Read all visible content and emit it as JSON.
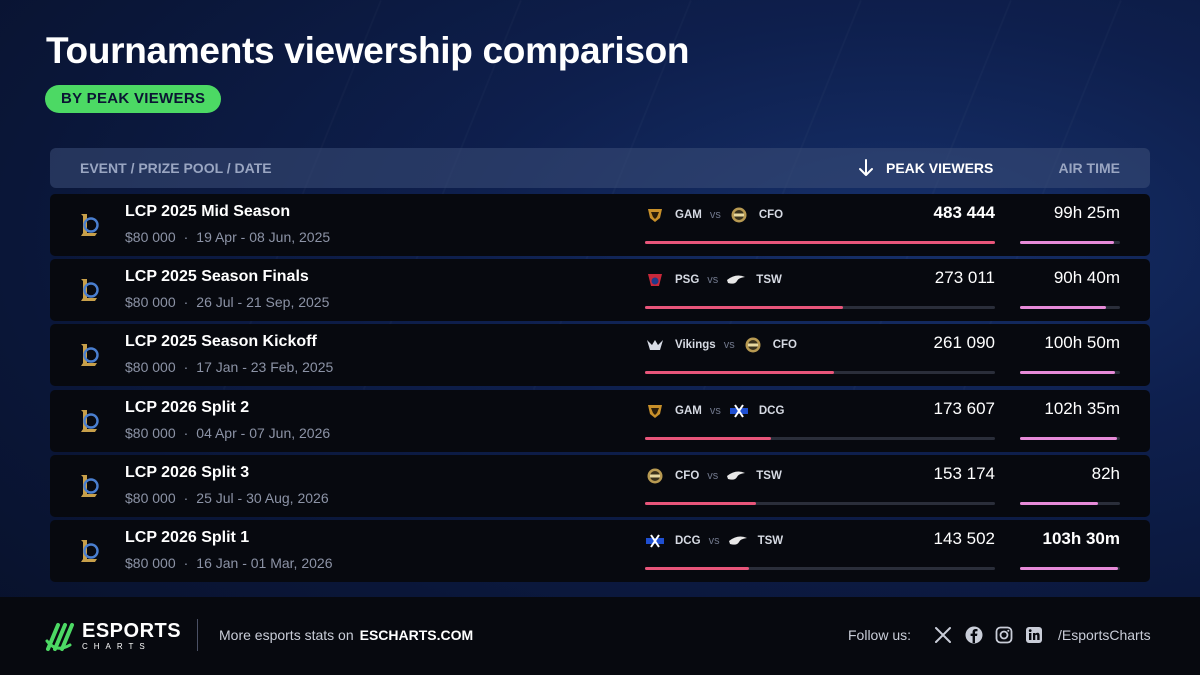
{
  "title": "Tournaments viewership comparison",
  "subtitle": "BY PEAK VIEWERS",
  "headers": {
    "event": "EVENT / PRIZE POOL / DATE",
    "peak": "PEAK VIEWERS",
    "air": "AIR TIME"
  },
  "chart_data": {
    "type": "table",
    "sorted_by": "peak_viewers",
    "sort_order": "descending",
    "columns": [
      "EVENT / PRIZE POOL / DATE",
      "PEAK VIEWERS",
      "AIR TIME"
    ],
    "rows": [
      {
        "event": "LCP 2025 Mid Season",
        "prize": "$80 000",
        "dates": "19 Apr - 08 Jun, 2025",
        "team1": "GAM",
        "team2": "CFO",
        "peak": 483444,
        "peak_label": "483 444",
        "air_hours": 99.42,
        "air_label": "99h 25m"
      },
      {
        "event": "LCP 2025 Season Finals",
        "prize": "$80 000",
        "dates": "26 Jul - 21 Sep, 2025",
        "team1": "PSG",
        "team2": "TSW",
        "peak": 273011,
        "peak_label": "273 011",
        "air_hours": 90.67,
        "air_label": "90h 40m"
      },
      {
        "event": "LCP 2025 Season Kickoff",
        "prize": "$80 000",
        "dates": "17 Jan - 23 Feb, 2025",
        "team1": "Vikings",
        "team2": "CFO",
        "peak": 261090,
        "peak_label": "261 090",
        "air_hours": 100.83,
        "air_label": "100h 50m"
      },
      {
        "event": "LCP 2026 Split 2",
        "prize": "$80 000",
        "dates": "04 Apr - 07 Jun, 2026",
        "team1": "GAM",
        "team2": "DCG",
        "peak": 173607,
        "peak_label": "173 607",
        "air_hours": 102.58,
        "air_label": "102h 35m"
      },
      {
        "event": "LCP 2026 Split 3",
        "prize": "$80 000",
        "dates": "25 Jul - 30 Aug, 2026",
        "team1": "CFO",
        "team2": "TSW",
        "peak": 153174,
        "peak_label": "153 174",
        "air_hours": 82,
        "air_label": "82h"
      },
      {
        "event": "LCP 2026 Split 1",
        "prize": "$80 000",
        "dates": "16 Jan - 01 Mar, 2026",
        "team1": "DCG",
        "team2": "TSW",
        "peak": 143502,
        "peak_label": "143 502",
        "air_hours": 103.5,
        "air_label": "103h 30m"
      }
    ],
    "peak_max": 483444,
    "air_max": 103.5
  },
  "vs_label": "vs",
  "separator": "·",
  "colors": {
    "accent_green": "#4cd964",
    "peak_bar": "#e8557a",
    "air_bar": "#e68ad8",
    "row_bg": "#07090f"
  },
  "footer": {
    "brand_big": "ESPORTS",
    "brand_small": "CHARTS",
    "more_text": "More esports stats on",
    "more_link": "ESCHARTS.COM",
    "follow": "Follow us:",
    "handle": "/EsportsCharts",
    "socials": [
      "x-icon",
      "facebook-icon",
      "instagram-icon",
      "linkedin-icon"
    ]
  }
}
